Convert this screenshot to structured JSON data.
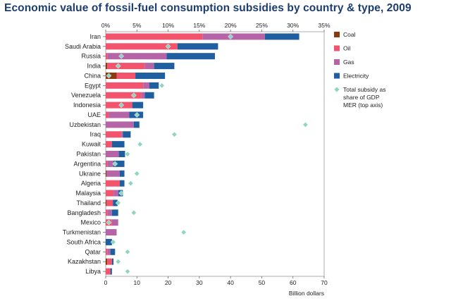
{
  "title": "Economic value of fossil-fuel consumption subsidies by country & type, 2009",
  "chart_data": {
    "type": "bar",
    "orientation": "horizontal",
    "stacked": true,
    "title": "Economic value of fossil-fuel consumption subsidies by country & type, 2009",
    "xlabel": "Billion dollars",
    "xlim": [
      0,
      70
    ],
    "xticks": [
      0,
      10,
      20,
      30,
      40,
      50,
      60,
      70
    ],
    "top_axis": {
      "label": "Total subsidy as share of GDP MER",
      "lim": [
        0,
        35
      ],
      "ticks": [
        "0%",
        "5%",
        "10%",
        "15%",
        "20%",
        "25%",
        "30%",
        "35%"
      ]
    },
    "categories": [
      "Iran",
      "Saudi Arabia",
      "Russia",
      "India",
      "China",
      "Egypt",
      "Venezuela",
      "Indonesia",
      "UAE",
      "Uzbekistan",
      "Iraq",
      "Kuwait",
      "Pakistan",
      "Argentina",
      "Ukraine",
      "Algeria",
      "Malaysia",
      "Thailand",
      "Bangladesh",
      "Mexico",
      "Turkmenistan",
      "South Africa",
      "Qatar",
      "Kazakhstan",
      "Libya"
    ],
    "series": [
      {
        "name": "Coal",
        "color": "#8b3a0f",
        "values": [
          0,
          0,
          0,
          0.5,
          3.5,
          0,
          0,
          0,
          0,
          0,
          0,
          0,
          0,
          0,
          0.3,
          0,
          0,
          0.3,
          0,
          0,
          0,
          0,
          0,
          0.5,
          0
        ]
      },
      {
        "name": "Oil",
        "color": "#f2546e",
        "values": [
          31,
          23,
          0.5,
          12,
          6,
          12,
          11.5,
          8.5,
          1,
          0,
          5,
          2,
          0,
          0.5,
          0,
          4.5,
          2.5,
          2,
          0.5,
          2,
          0,
          0,
          0.5,
          1.5,
          1.5
        ]
      },
      {
        "name": "Gas",
        "color": "#b565a7",
        "values": [
          20,
          0,
          19,
          3,
          0,
          2,
          1,
          0,
          6.5,
          9,
          0.5,
          0,
          4.2,
          2,
          4.2,
          0,
          1.5,
          0,
          1.5,
          2,
          3.5,
          0,
          1,
          0,
          0
        ]
      },
      {
        "name": "Electricity",
        "color": "#1f5fa0",
        "values": [
          11,
          13,
          15.5,
          6.5,
          9.5,
          3,
          3,
          3.5,
          4.5,
          1.8,
          2.5,
          4,
          2,
          3.5,
          1.5,
          1.5,
          1.5,
          1.5,
          2,
          0,
          0,
          2,
          1.5,
          0.5,
          0.5
        ]
      }
    ],
    "gdp_share_pct": [
      20,
      10,
      2.5,
      2,
      0.5,
      9,
      4.5,
      2.5,
      5,
      32,
      11,
      5.5,
      3.5,
      1.5,
      5,
      4,
      2.5,
      2,
      4.5,
      0.5,
      12.5,
      1.2,
      3.5,
      2,
      3.5
    ],
    "legend": [
      "Coal",
      "Oil",
      "Gas",
      "Electricity",
      "Total subsidy as share of GDP MER (top axis)"
    ]
  }
}
